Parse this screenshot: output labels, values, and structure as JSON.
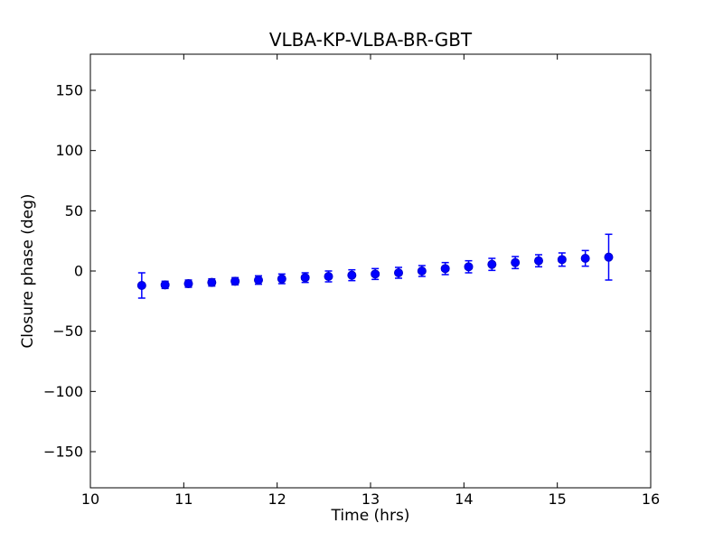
{
  "figure": {
    "background_color": "#ffffff",
    "frame_color": "#000000"
  },
  "chart_data": {
    "type": "scatter",
    "title": "VLBA-KP-VLBA-BR-GBT",
    "xlabel": "Time (hrs)",
    "ylabel": "Closure phase (deg)",
    "xlim": [
      10,
      16
    ],
    "ylim": [
      -180,
      180
    ],
    "xticks": [
      10,
      11,
      12,
      13,
      14,
      15,
      16
    ],
    "xticklabels": [
      "10",
      "11",
      "12",
      "13",
      "14",
      "15",
      "16"
    ],
    "yticks": [
      -150,
      -100,
      -50,
      0,
      50,
      100,
      150
    ],
    "yticklabels": [
      "−150",
      "−100",
      "−50",
      "0",
      "50",
      "100",
      "150"
    ],
    "grid": false,
    "legend": null,
    "marker_style": "circle",
    "marker_color": "#0000ff",
    "marker_edge_color": "#0000cc",
    "errorbar_color": "#0000ff",
    "series": [
      {
        "name": "closure phase",
        "x": [
          10.55,
          10.8,
          11.05,
          11.3,
          11.55,
          11.8,
          12.05,
          12.3,
          12.55,
          12.8,
          13.05,
          13.3,
          13.55,
          13.8,
          14.05,
          14.3,
          14.55,
          14.8,
          15.05,
          15.3,
          15.55
        ],
        "y": [
          -12,
          -11.5,
          -10.5,
          -9.5,
          -8.5,
          -7.5,
          -6.5,
          -5.5,
          -4.5,
          -3.5,
          -2.5,
          -1.5,
          0,
          2,
          3.5,
          5.5,
          7,
          8.5,
          9.5,
          10.5,
          11.5
        ],
        "yerr": [
          10.5,
          3,
          3,
          3,
          3,
          3.5,
          4,
          4,
          4.5,
          4.5,
          4.5,
          4.5,
          4.5,
          5,
          5,
          5,
          5,
          5,
          5.5,
          6.5,
          19
        ]
      }
    ]
  }
}
